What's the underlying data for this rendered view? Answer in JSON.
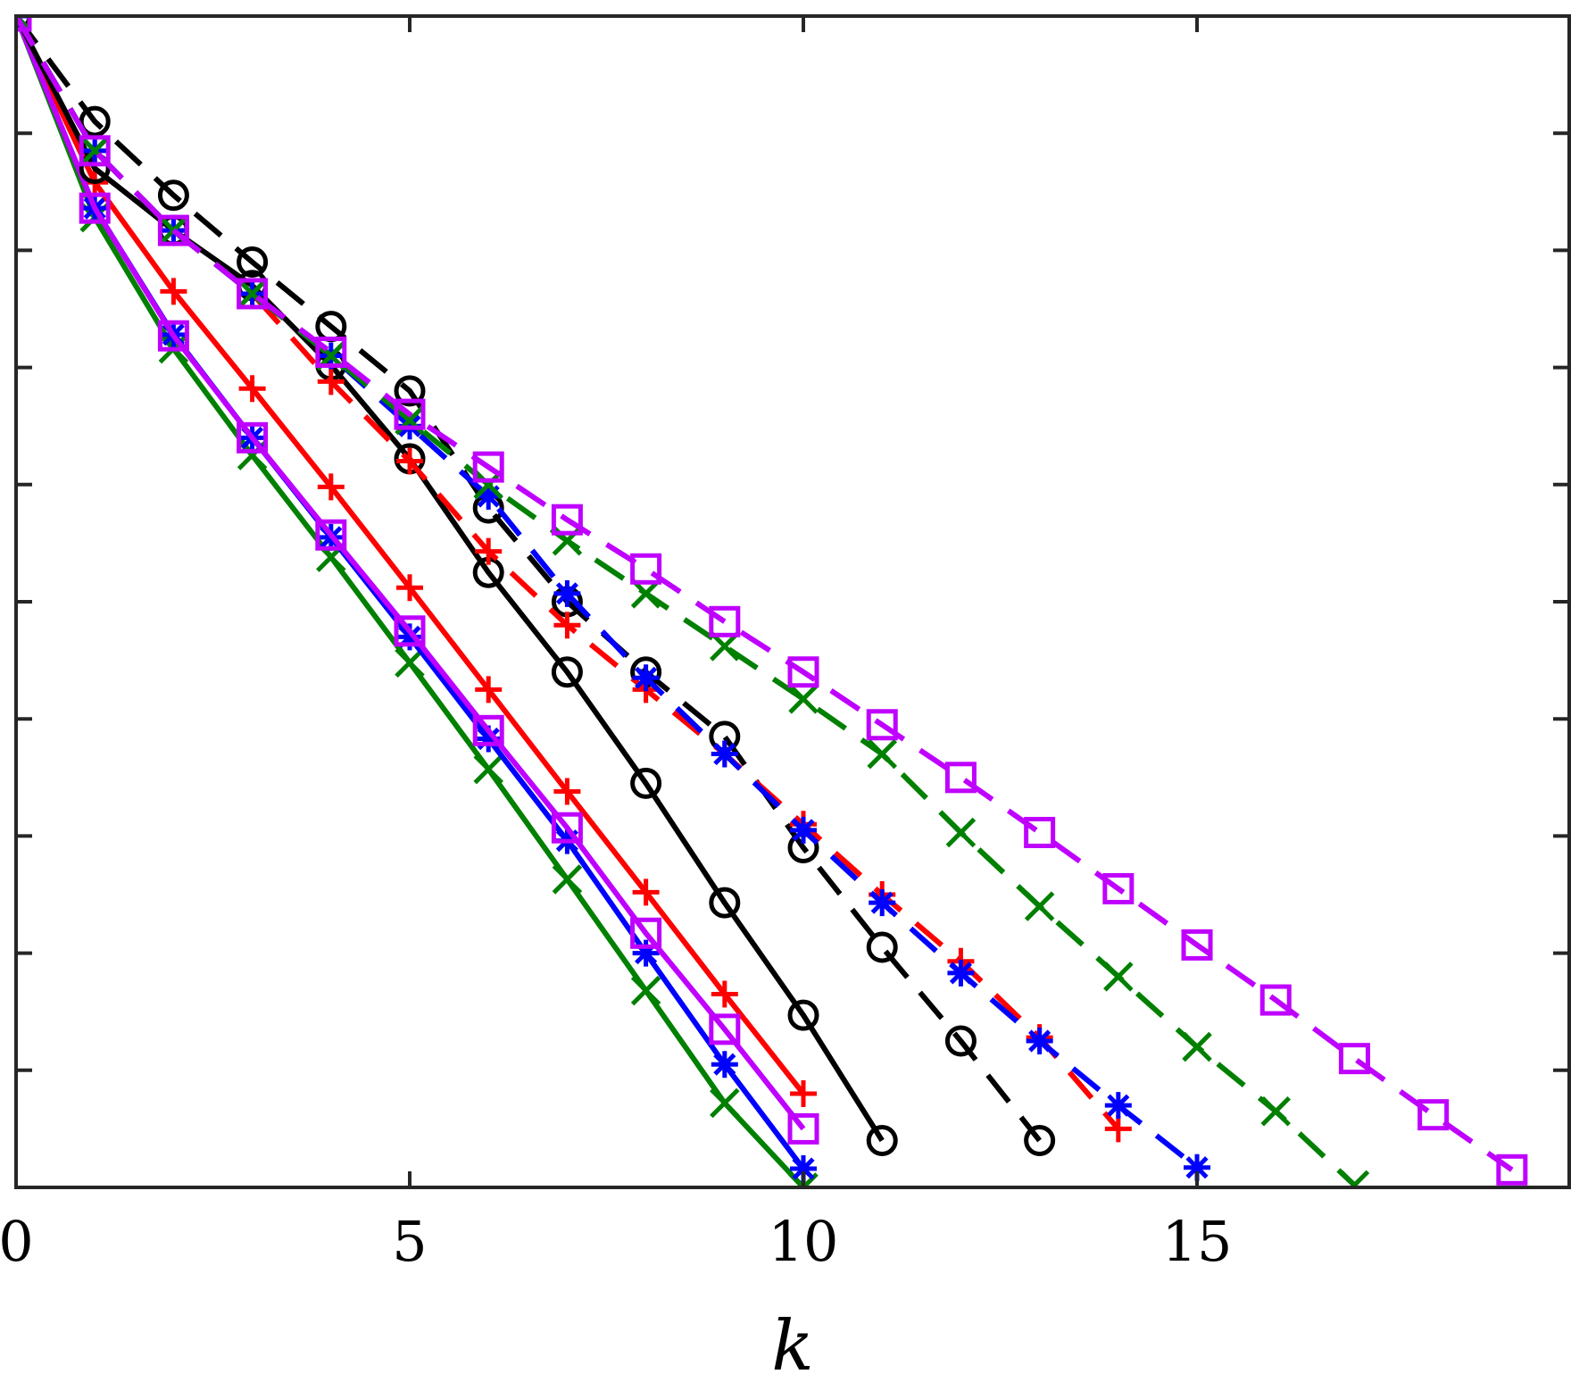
{
  "chart_data": {
    "type": "line",
    "title": "",
    "xlabel": "k",
    "ylabel": "",
    "xlim": [
      0,
      19.75
    ],
    "ylim": [
      -10,
      0
    ],
    "x_ticks": [
      0,
      5,
      10,
      15
    ],
    "x_tick_labels": [
      "0",
      "5",
      "10",
      "15"
    ],
    "y_ticks": [
      -10,
      -9,
      -8,
      -7,
      -6,
      -5,
      -4,
      -3,
      -2,
      -1,
      0
    ],
    "grid": false,
    "legend": "none",
    "series": [
      {
        "color": "#008000",
        "marker": "x",
        "dash": "solid",
        "x": [
          0,
          1,
          2,
          3,
          4,
          5,
          6,
          7,
          8,
          9,
          10
        ],
        "y": [
          0,
          -1.72,
          -2.84,
          -3.75,
          -4.62,
          -5.52,
          -6.43,
          -7.37,
          -8.32,
          -9.28,
          -10.0
        ]
      },
      {
        "color": "#0000ff",
        "marker": "*",
        "dash": "solid",
        "x": [
          0,
          1,
          2,
          3,
          4,
          5,
          6,
          7,
          8,
          9,
          10
        ],
        "y": [
          0,
          -1.64,
          -2.72,
          -3.6,
          -4.45,
          -5.3,
          -6.17,
          -7.04,
          -8.0,
          -8.95,
          -9.84
        ]
      },
      {
        "color": "#ff0000",
        "marker": "+",
        "dash": "solid",
        "x": [
          0,
          1,
          2,
          3,
          4,
          5,
          6,
          7,
          8,
          9,
          10
        ],
        "y": [
          0,
          -1.42,
          -2.35,
          -3.18,
          -4.02,
          -4.88,
          -5.75,
          -6.62,
          -7.48,
          -8.35,
          -9.2
        ]
      },
      {
        "color": "#bf00ff",
        "marker": "s",
        "dash": "solid",
        "x": [
          0,
          1,
          2,
          3,
          4,
          5,
          6,
          7,
          8,
          9,
          10
        ],
        "y": [
          0,
          -1.64,
          -2.73,
          -3.6,
          -4.43,
          -5.25,
          -6.1,
          -6.93,
          -7.83,
          -8.65,
          -9.5
        ]
      },
      {
        "color": "#000000",
        "marker": "o",
        "dash": "solid",
        "x": [
          0,
          1,
          2,
          3,
          4,
          5,
          6,
          7,
          8,
          9,
          10,
          11
        ],
        "y": [
          0,
          -1.3,
          -1.83,
          -2.3,
          -2.98,
          -3.78,
          -4.75,
          -5.6,
          -6.55,
          -7.57,
          -8.53,
          -9.6
        ]
      },
      {
        "color": "#000000",
        "marker": "o",
        "dash": "dashed",
        "x": [
          0,
          1,
          2,
          3,
          4,
          5,
          6,
          7,
          8,
          9,
          10,
          11,
          12,
          13
        ],
        "y": [
          0,
          -0.9,
          -1.53,
          -2.1,
          -2.65,
          -3.2,
          -4.2,
          -5.0,
          -5.6,
          -6.15,
          -7.1,
          -7.95,
          -8.75,
          -9.6
        ]
      },
      {
        "color": "#ff0000",
        "marker": "+",
        "dash": "dashed",
        "x": [
          0,
          1,
          2,
          3,
          4,
          5,
          6,
          7,
          8,
          9,
          10,
          11,
          12,
          13,
          14
        ],
        "y": [
          0,
          -1.15,
          -1.83,
          -2.37,
          -3.12,
          -3.8,
          -4.57,
          -5.2,
          -5.75,
          -6.3,
          -6.9,
          -7.5,
          -8.07,
          -8.72,
          -9.5
        ]
      },
      {
        "color": "#0000ff",
        "marker": "*",
        "dash": "dashed",
        "x": [
          0,
          1,
          2,
          3,
          4,
          5,
          6,
          7,
          8,
          9,
          10,
          11,
          12,
          13,
          14,
          15
        ],
        "y": [
          0,
          -1.15,
          -1.83,
          -2.37,
          -2.9,
          -3.5,
          -4.1,
          -4.93,
          -5.65,
          -6.3,
          -6.95,
          -7.57,
          -8.17,
          -8.75,
          -9.3,
          -9.83
        ]
      },
      {
        "color": "#008000",
        "marker": "x",
        "dash": "dashed",
        "x": [
          0,
          1,
          2,
          3,
          4,
          5,
          6,
          7,
          8,
          9,
          10,
          11,
          12,
          13,
          14,
          15,
          16,
          17
        ],
        "y": [
          0,
          -1.15,
          -1.83,
          -2.37,
          -2.9,
          -3.45,
          -4.0,
          -4.48,
          -4.93,
          -5.38,
          -5.83,
          -6.3,
          -6.97,
          -7.6,
          -8.2,
          -8.8,
          -9.35,
          -9.98
        ]
      },
      {
        "color": "#bf00ff",
        "marker": "s",
        "dash": "dashed",
        "x": [
          0,
          1,
          2,
          3,
          4,
          5,
          6,
          7,
          8,
          9,
          10,
          11,
          12,
          13,
          14,
          15,
          16,
          17,
          18,
          19
        ],
        "y": [
          0,
          -1.15,
          -1.83,
          -2.37,
          -2.87,
          -3.4,
          -3.85,
          -4.3,
          -4.72,
          -5.17,
          -5.6,
          -6.05,
          -6.5,
          -6.97,
          -7.45,
          -7.93,
          -8.4,
          -8.9,
          -9.38,
          -9.85
        ]
      }
    ]
  }
}
